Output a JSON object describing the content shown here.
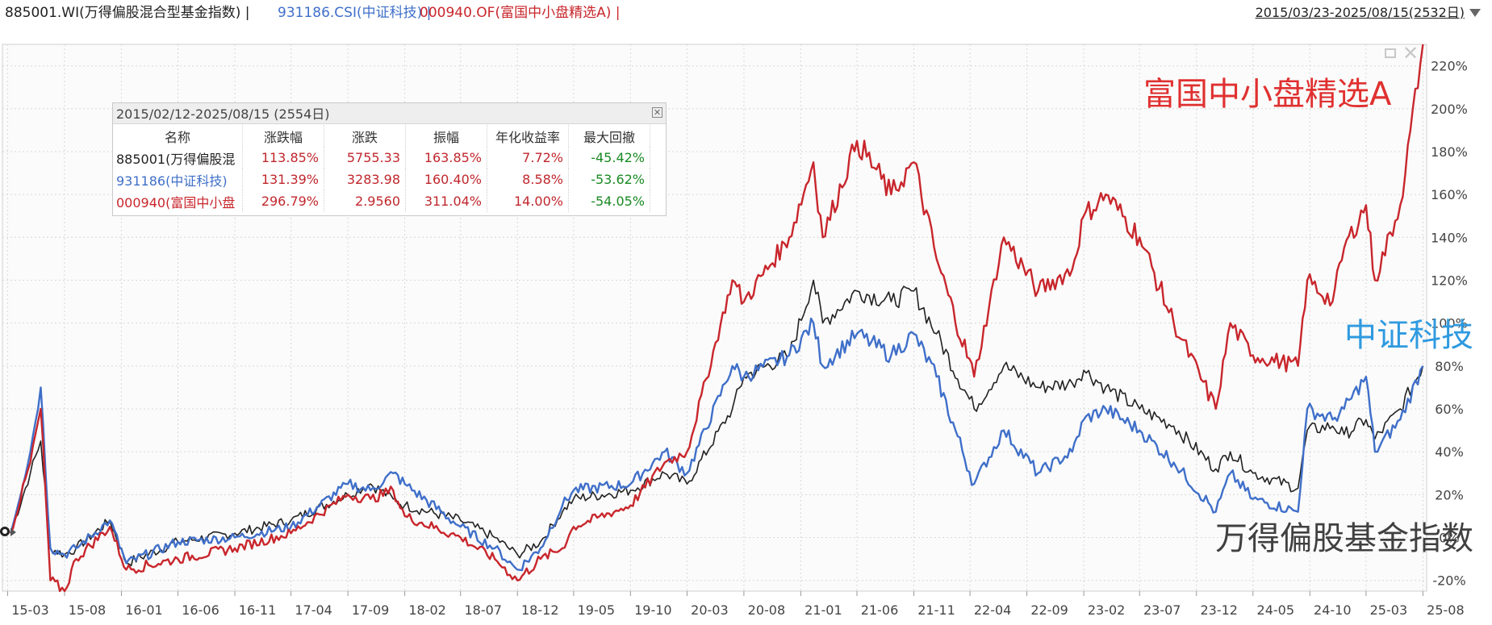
{
  "header": {
    "series_a": "885001.WI(万得偏股混合型基金指数) |",
    "series_b": "931186.CSI(中证科技) |",
    "series_c": "000940.OF(富国中小盘精选A) |",
    "range": "2015/03/23-2025/08/15(2532日)",
    "colors": {
      "a": "#222222",
      "b": "#3f6fc9",
      "c": "#c8262c"
    }
  },
  "stats_box": {
    "title": "2015/02/12-2025/08/15 (2554日)",
    "columns": [
      "名称",
      "涨跌幅",
      "涨跌",
      "振幅",
      "年化收益率",
      "最大回撤"
    ],
    "rows": [
      {
        "name": "885001(万得偏股混",
        "change_pct": "113.85%",
        "change": "5755.33",
        "amplitude": "163.85%",
        "annual_return": "7.72%",
        "max_drawdown": "-45.42%",
        "color": "#222222"
      },
      {
        "name": "931186(中证科技)",
        "change_pct": "131.39%",
        "change": "3283.98",
        "amplitude": "160.40%",
        "annual_return": "8.58%",
        "max_drawdown": "-53.62%",
        "color": "#3f6fc9"
      },
      {
        "name": "000940(富国中小盘",
        "change_pct": "296.79%",
        "change": "2.9560",
        "amplitude": "311.04%",
        "annual_return": "14.00%",
        "max_drawdown": "-54.05%",
        "color": "#c8262c"
      }
    ]
  },
  "annotations": {
    "red": "富国中小盘精选A",
    "blue": "中证科技",
    "black": "万得偏股基金指数"
  },
  "icons": {
    "restore": "restore-icon",
    "close": "close-icon",
    "dropdown": "chevron-down-icon"
  },
  "chart_data": {
    "type": "line",
    "x_type": "date",
    "ylim": [
      -25,
      230
    ],
    "y_ticks": [
      "-20%",
      "0%",
      "20%",
      "40%",
      "60%",
      "80%",
      "100%",
      "120%",
      "140%",
      "160%",
      "180%",
      "200%",
      "220%"
    ],
    "x_ticks": [
      "15-03",
      "15-08",
      "16-01",
      "16-06",
      "16-11",
      "17-04",
      "17-09",
      "18-02",
      "18-07",
      "18-12",
      "19-05",
      "19-10",
      "20-03",
      "20-08",
      "21-01",
      "21-06",
      "21-11",
      "22-04",
      "22-09",
      "23-02",
      "23-07",
      "23-12",
      "24-05",
      "24-10",
      "25-03",
      "25-08"
    ],
    "grid": true,
    "series": [
      {
        "name": "885001.WI(万得偏股混合型基金指数)",
        "color": "#222222",
        "x": [
          "2015-03-23",
          "2015-05",
          "2015-06-12",
          "2015-07-08",
          "2015-08",
          "2015-09",
          "2015-12",
          "2016-01-28",
          "2016-06",
          "2016-11",
          "2017-04",
          "2017-09",
          "2017-11",
          "2018-01",
          "2018-02",
          "2018-07",
          "2018-10",
          "2018-12",
          "2019-02",
          "2019-04",
          "2019-05",
          "2019-10",
          "2020-01",
          "2020-03",
          "2020-07",
          "2020-08",
          "2020-12",
          "2021-02-18",
          "2021-03",
          "2021-06",
          "2021-09",
          "2021-11",
          "2022-01",
          "2022-04-26",
          "2022-07",
          "2022-10",
          "2023-01",
          "2023-02",
          "2023-04",
          "2023-07",
          "2023-10",
          "2024-02-05",
          "2024-03",
          "2024-05",
          "2024-09-13",
          "2024-10-08",
          "2024-12",
          "2025-01",
          "2025-03",
          "2025-04-08",
          "2025-06",
          "2025-08-15"
        ],
        "y": [
          2,
          30,
          45,
          -5,
          -8,
          -5,
          8,
          -12,
          -2,
          2,
          8,
          20,
          25,
          18,
          15,
          8,
          0,
          -8,
          -2,
          12,
          18,
          22,
          30,
          25,
          60,
          75,
          85,
          120,
          100,
          115,
          110,
          115,
          95,
          60,
          80,
          70,
          72,
          78,
          70,
          60,
          52,
          32,
          40,
          30,
          23,
          50,
          52,
          48,
          55,
          46,
          60,
          80
        ]
      },
      {
        "name": "931186.CSI(中证科技)",
        "color": "#3f6fc9",
        "x": [
          "2015-03-23",
          "2015-05",
          "2015-06-12",
          "2015-07-08",
          "2015-08",
          "2015-09",
          "2015-12",
          "2016-01-28",
          "2016-06",
          "2016-11",
          "2017-04",
          "2017-09",
          "2017-11",
          "2018-01",
          "2018-02",
          "2018-07",
          "2018-10",
          "2018-12",
          "2019-02",
          "2019-04",
          "2019-05",
          "2019-10",
          "2020-01",
          "2020-03",
          "2020-07",
          "2020-08",
          "2020-12",
          "2021-02-18",
          "2021-03",
          "2021-06",
          "2021-09",
          "2021-11",
          "2022-01",
          "2022-04-26",
          "2022-07",
          "2022-10",
          "2023-01",
          "2023-02",
          "2023-04",
          "2023-07",
          "2023-10",
          "2024-02-05",
          "2024-03",
          "2024-05",
          "2024-09-13",
          "2024-10-08",
          "2024-12",
          "2025-01",
          "2025-03",
          "2025-04-08",
          "2025-06",
          "2025-08-15"
        ],
        "y": [
          2,
          40,
          70,
          -5,
          -8,
          -5,
          8,
          -12,
          -2,
          0,
          5,
          25,
          22,
          30,
          25,
          5,
          -5,
          -15,
          -5,
          15,
          22,
          25,
          40,
          30,
          80,
          75,
          85,
          100,
          80,
          95,
          85,
          95,
          75,
          25,
          50,
          30,
          40,
          55,
          60,
          50,
          35,
          12,
          30,
          18,
          12,
          60,
          55,
          60,
          75,
          40,
          55,
          80
        ]
      },
      {
        "name": "000940.OF(富国中小盘精选A)",
        "color": "#c8262c",
        "x": [
          "2015-03-23",
          "2015-05",
          "2015-06-12",
          "2015-07-08",
          "2015-08",
          "2015-09",
          "2015-12",
          "2016-01-28",
          "2016-06",
          "2016-11",
          "2017-04",
          "2017-09",
          "2017-11",
          "2018-01",
          "2018-02",
          "2018-07",
          "2018-10",
          "2018-12",
          "2019-02",
          "2019-04",
          "2019-05",
          "2019-10",
          "2020-01",
          "2020-03",
          "2020-07",
          "2020-08",
          "2020-12",
          "2021-02-18",
          "2021-03",
          "2021-06",
          "2021-09",
          "2021-11",
          "2022-01",
          "2022-04-26",
          "2022-07",
          "2022-10",
          "2023-01",
          "2023-02",
          "2023-04",
          "2023-07",
          "2023-10",
          "2024-02-05",
          "2024-03",
          "2024-05",
          "2024-09-13",
          "2024-10-08",
          "2024-12",
          "2025-01",
          "2025-03",
          "2025-04-08",
          "2025-06",
          "2025-08-15"
        ],
        "y": [
          2,
          35,
          60,
          -20,
          -25,
          -10,
          5,
          -15,
          -10,
          -5,
          2,
          20,
          18,
          22,
          10,
          0,
          -10,
          -20,
          -10,
          -5,
          5,
          15,
          35,
          40,
          120,
          110,
          140,
          175,
          140,
          185,
          160,
          175,
          130,
          75,
          140,
          115,
          125,
          150,
          160,
          140,
          100,
          60,
          100,
          85,
          80,
          120,
          110,
          135,
          155,
          120,
          155,
          230
        ]
      }
    ]
  }
}
